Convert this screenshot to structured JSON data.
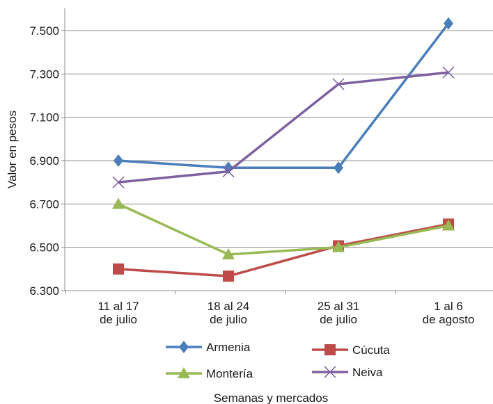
{
  "chart_data": {
    "type": "line",
    "title": "",
    "xlabel": "Semanas y mercados",
    "ylabel": "Valor en pesos",
    "categories": [
      [
        "11 al 17",
        "de julio"
      ],
      [
        "18 al 24",
        "de julio"
      ],
      [
        "25 al 31",
        "de julio"
      ],
      [
        "1 al 6",
        "de agosto"
      ]
    ],
    "ylim": [
      6300,
      7600
    ],
    "yticks": [
      6300,
      6500,
      6700,
      6900,
      7100,
      7300,
      7500
    ],
    "ytick_labels": [
      "6.300",
      "6.500",
      "6.700",
      "6.900",
      "7.100",
      "7.300",
      "7.500"
    ],
    "grid": true,
    "legend_position": "bottom",
    "series": [
      {
        "name": "Armenia",
        "color": "#4a7ebb",
        "marker": "diamond",
        "values": [
          6900,
          6867,
          6867,
          7533
        ]
      },
      {
        "name": "Cúcuta",
        "color": "#be4b48",
        "marker": "square",
        "values": [
          6400,
          6367,
          6507,
          6607
        ]
      },
      {
        "name": "Montería",
        "color": "#98b954",
        "marker": "triangle",
        "values": [
          6700,
          6467,
          6500,
          6600
        ]
      },
      {
        "name": "Neiva",
        "color": "#7d60a0",
        "marker": "x",
        "values": [
          6800,
          6850,
          7253,
          7307
        ]
      }
    ]
  }
}
